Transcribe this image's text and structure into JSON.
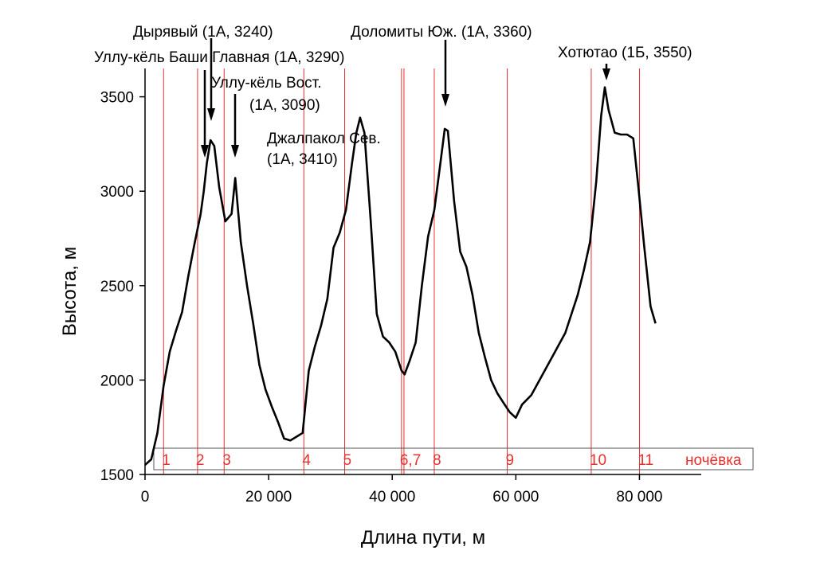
{
  "chart_data": {
    "type": "line",
    "title": "",
    "xlabel": "Длина пути, м",
    "ylabel": "Высота, м",
    "xlim": [
      0,
      90000
    ],
    "ylim": [
      1500,
      3650
    ],
    "grid": false,
    "x_ticks": [
      {
        "value": 0,
        "label": "0"
      },
      {
        "value": 20000,
        "label": "20 000"
      },
      {
        "value": 40000,
        "label": "40 000"
      },
      {
        "value": 60000,
        "label": "60 000"
      },
      {
        "value": 80000,
        "label": "80 000"
      }
    ],
    "y_ticks": [
      {
        "value": 1500,
        "label": "1500"
      },
      {
        "value": 2000,
        "label": "2000"
      },
      {
        "value": 2500,
        "label": "2500"
      },
      {
        "value": 3000,
        "label": "3000"
      },
      {
        "value": 3500,
        "label": "3500"
      }
    ],
    "series": [
      {
        "color": "#000000",
        "x": [
          0,
          1000,
          2000,
          3000,
          4000,
          5000,
          6000,
          7000,
          8000,
          9000,
          9500,
          10000,
          10600,
          11200,
          12000,
          13000,
          14000,
          14600,
          15500,
          16500,
          17500,
          18500,
          19500,
          20500,
          21500,
          22500,
          23500,
          24500,
          25500,
          26500,
          27500,
          28500,
          29500,
          30500,
          31500,
          32500,
          33500,
          34200,
          34800,
          35500,
          36500,
          37500,
          38500,
          39500,
          40500,
          41500,
          42000,
          42800,
          43800,
          44800,
          45800,
          46800,
          47800,
          48500,
          49000,
          50000,
          51000,
          52000,
          53000,
          54000,
          55000,
          56000,
          57000,
          58000,
          59000,
          60000,
          61000,
          62500,
          64000,
          66000,
          68000,
          70000,
          71000,
          72000,
          73000,
          73800,
          74400,
          75000,
          76000,
          77000,
          78000,
          79000,
          79800,
          80800,
          81800,
          82600
        ],
        "y": [
          1550,
          1580,
          1720,
          1970,
          2150,
          2260,
          2360,
          2550,
          2720,
          2880,
          3000,
          3150,
          3270,
          3240,
          3020,
          2840,
          2880,
          3070,
          2730,
          2500,
          2300,
          2080,
          1950,
          1860,
          1780,
          1690,
          1680,
          1700,
          1720,
          2050,
          2180,
          2290,
          2430,
          2700,
          2780,
          2900,
          3150,
          3310,
          3390,
          3310,
          2850,
          2350,
          2230,
          2200,
          2150,
          2050,
          2030,
          2100,
          2200,
          2500,
          2760,
          2900,
          3150,
          3330,
          3320,
          2950,
          2680,
          2600,
          2450,
          2250,
          2120,
          2000,
          1930,
          1880,
          1830,
          1800,
          1870,
          1920,
          2010,
          2130,
          2250,
          2450,
          2580,
          2730,
          3050,
          3400,
          3550,
          3430,
          3310,
          3300,
          3300,
          3280,
          3030,
          2700,
          2390,
          2300
        ]
      }
    ],
    "night_stops": [
      {
        "x": 3000,
        "label": "1"
      },
      {
        "x": 8500,
        "label": "2"
      },
      {
        "x": 12800,
        "label": "3"
      },
      {
        "x": 25700,
        "label": "4"
      },
      {
        "x": 32300,
        "label": "5"
      },
      {
        "x": 41500,
        "label": "6,7"
      },
      {
        "x": 41900,
        "label": ""
      },
      {
        "x": 46800,
        "label": "8"
      },
      {
        "x": 58600,
        "label": "9"
      },
      {
        "x": 72200,
        "label": "10"
      },
      {
        "x": 80000,
        "label": "11"
      }
    ],
    "night_legend": "ночёвка",
    "annotations": [
      {
        "lines": [
          "Дырявый (1А, 3240)"
        ]
      },
      {
        "lines": [
          "Уллу-кёль Баши Главная (1А, 3290)"
        ]
      },
      {
        "lines": [
          "Уллу-кёль Вост.",
          "(1А, 3090)"
        ]
      },
      {
        "lines": [
          "Джалпакол Сев.",
          "(1А, 3410)"
        ]
      },
      {
        "lines": [
          "Доломиты Юж. (1А, 3360)"
        ]
      },
      {
        "lines": [
          "Хотютао (1Б, 3550)"
        ]
      }
    ],
    "colors": {
      "line": "#000000",
      "night_line": "#e8302e",
      "night_text": "#e8302e"
    }
  }
}
